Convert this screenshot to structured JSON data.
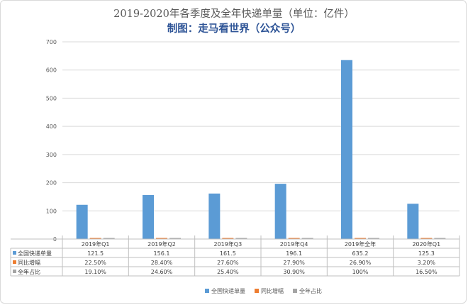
{
  "chart_data": {
    "type": "bar",
    "title": "2019-2020年各季度及全年快递单量（单位：亿件）",
    "subtitle": "制图：走马看世界（公众号）",
    "categories": [
      "2019年Q1",
      "2019年Q2",
      "2019年Q3",
      "2019年Q4",
      "2019年全年",
      "2020年Q1"
    ],
    "y_ticks": [
      "0",
      "100",
      "200",
      "300",
      "400",
      "500",
      "600",
      "700"
    ],
    "ylim": [
      0,
      700
    ],
    "grid": true,
    "legend_position": "bottom",
    "series": [
      {
        "name": "全国快递单量",
        "color": "#5b9bd5",
        "values": [
          121.5,
          156.1,
          161.5,
          196.1,
          635.2,
          125.3
        ],
        "labels": [
          "121.5",
          "156.1",
          "161.5",
          "196.1",
          "635.2",
          "125.3"
        ]
      },
      {
        "name": "同比增幅",
        "color": "#ed7d31",
        "values": [
          0.225,
          0.284,
          0.276,
          0.279,
          0.269,
          0.032
        ],
        "labels": [
          "22.50%",
          "28.40%",
          "27.60%",
          "27.90%",
          "26.90%",
          "3.20%"
        ]
      },
      {
        "name": "全年占比",
        "color": "#a5a5a5",
        "values": [
          0.191,
          0.246,
          0.254,
          0.309,
          1.0,
          0.165
        ],
        "labels": [
          "19.10%",
          "24.60%",
          "25.40%",
          "30.90%",
          "100%",
          "16.50%"
        ]
      }
    ]
  }
}
